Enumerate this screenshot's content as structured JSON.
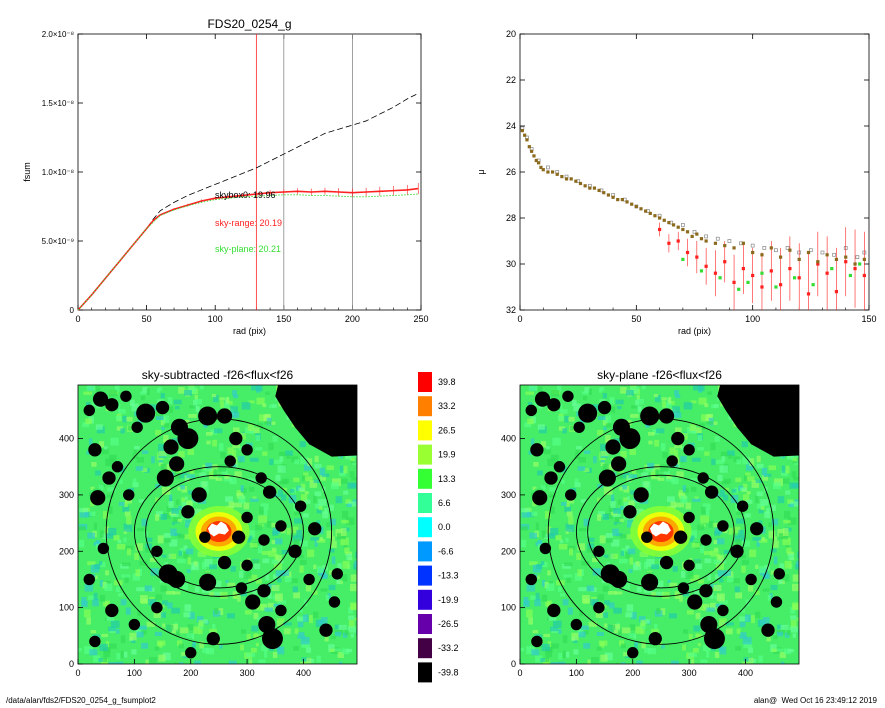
{
  "footer": {
    "path": "/data/alan/fds2/FDS20_0254_g_fsumplot2",
    "stamp": "alan@  Wed Oct 16 23:49:12 2019"
  },
  "colors": {
    "red": "#ff2020",
    "green": "#33dd33",
    "gray": "#888888",
    "olive": "#8b6a1e"
  },
  "chart_data": [
    {
      "id": "fsum",
      "type": "line",
      "title": "FDS20_0254_g",
      "xlabel": "rad (pix)",
      "ylabel": "fsum",
      "xlim": [
        0,
        250
      ],
      "ylim": [
        0,
        2e-08
      ],
      "x_ticks": [
        "0",
        "50",
        "100",
        "150",
        "200",
        "250"
      ],
      "y_ticks": [
        "0",
        "5.0×10⁻⁹",
        "1.0×10⁻⁸",
        "1.5×10⁻⁸",
        "2.0×10⁻⁸"
      ],
      "y_tick_values": [
        0,
        5e-09,
        1e-08,
        1.5e-08,
        2e-08
      ],
      "vertical_lines": [
        {
          "x": 130,
          "color": "#ff2020"
        },
        {
          "x": 150,
          "color": "#888888"
        },
        {
          "x": 200,
          "color": "#888888"
        }
      ],
      "annotations": [
        {
          "text": "skybox0: 19.96",
          "color": "#000000",
          "x": 78,
          "y": 8.1e-09
        },
        {
          "text": "sky-range: 20.19",
          "color": "#ff2020",
          "x": 78,
          "y": 6.1e-09
        },
        {
          "text": "sky-plane: 20.21",
          "color": "#33dd33",
          "x": 78,
          "y": 4.2e-09
        }
      ],
      "series": [
        {
          "style": "dashed",
          "color": "#000000",
          "x": [
            0,
            10,
            20,
            30,
            40,
            50,
            55,
            60,
            70,
            80,
            90,
            100,
            110,
            120,
            130,
            140,
            150,
            160,
            170,
            180,
            190,
            200,
            210,
            220,
            230,
            240,
            248
          ],
          "y": [
            0,
            1.1e-09,
            2.3e-09,
            3.5e-09,
            4.7e-09,
            5.9e-09,
            6.6e-09,
            7.2e-09,
            7.8e-09,
            8.3e-09,
            8.7e-09,
            9.1e-09,
            9.5e-09,
            9.9e-09,
            1.03e-08,
            1.08e-08,
            1.13e-08,
            1.18e-08,
            1.23e-08,
            1.28e-08,
            1.31e-08,
            1.34e-08,
            1.37e-08,
            1.42e-08,
            1.47e-08,
            1.53e-08,
            1.57e-08
          ]
        },
        {
          "style": "errorbar",
          "color": "#ff2020",
          "x": [
            0,
            10,
            20,
            30,
            40,
            50,
            55,
            60,
            70,
            80,
            90,
            100,
            110,
            120,
            130,
            140,
            150,
            160,
            170,
            180,
            190,
            200,
            210,
            220,
            230,
            240,
            248
          ],
          "y": [
            0,
            1.1e-09,
            2.3e-09,
            3.5e-09,
            4.7e-09,
            5.9e-09,
            6.5e-09,
            6.9e-09,
            7.3e-09,
            7.6e-09,
            7.9e-09,
            8.1e-09,
            8.2e-09,
            8.3e-09,
            8.4e-09,
            8.5e-09,
            8.55e-09,
            8.6e-09,
            8.55e-09,
            8.6e-09,
            8.55e-09,
            8.5e-09,
            8.55e-09,
            8.6e-09,
            8.65e-09,
            8.7e-09,
            8.8e-09
          ],
          "err": [
            0,
            0,
            0,
            0,
            0,
            5e-11,
            5e-11,
            5e-11,
            8e-11,
            1e-10,
            1.2e-10,
            1.2e-10,
            1.5e-10,
            1.5e-10,
            1.8e-10,
            2e-10,
            2e-10,
            2.2e-10,
            2.5e-10,
            2.5e-10,
            2.8e-10,
            3e-10,
            3e-10,
            3.2e-10,
            3.4e-10,
            3.6e-10,
            4e-10
          ]
        },
        {
          "style": "solid",
          "color": "#33dd33",
          "x": [
            0,
            10,
            20,
            30,
            40,
            50,
            60,
            70,
            80,
            90,
            100,
            110,
            120,
            130,
            140,
            150,
            160,
            170,
            180,
            190,
            200,
            210,
            220,
            230,
            240,
            248
          ],
          "y": [
            0,
            1.1e-09,
            2.3e-09,
            3.5e-09,
            4.7e-09,
            5.9e-09,
            6.85e-09,
            7.25e-09,
            7.55e-09,
            7.8e-09,
            8e-09,
            8.1e-09,
            8.2e-09,
            8.25e-09,
            8.3e-09,
            8.35e-09,
            8.35e-09,
            8.3e-09,
            8.3e-09,
            8.25e-09,
            8.2e-09,
            8.2e-09,
            8.25e-09,
            8.3e-09,
            8.35e-09,
            8.4e-09
          ]
        }
      ]
    },
    {
      "id": "profile",
      "type": "scatter",
      "title": "",
      "xlabel": "rad (pix)",
      "ylabel": "μ",
      "xlim": [
        0,
        150
      ],
      "ylim": [
        32,
        20
      ],
      "x_ticks": [
        "0",
        "50",
        "100",
        "150"
      ],
      "y_ticks": [
        "20",
        "22",
        "24",
        "26",
        "28",
        "30",
        "32"
      ],
      "series": [
        {
          "marker": "open-square",
          "color": "#888888",
          "x": [
            1,
            3,
            5,
            8,
            12,
            16,
            20,
            25,
            30,
            35,
            40,
            45,
            50,
            55,
            60,
            65,
            70,
            75,
            80,
            85,
            90,
            95,
            100,
            105,
            110,
            115,
            120,
            125,
            130,
            135,
            140,
            145,
            148
          ],
          "y": [
            24.1,
            24.5,
            25.0,
            25.5,
            25.8,
            26.0,
            26.2,
            26.4,
            26.6,
            26.8,
            27.0,
            27.2,
            27.5,
            27.7,
            27.9,
            28.2,
            28.3,
            28.6,
            28.8,
            28.9,
            29.0,
            29.1,
            29.2,
            29.3,
            29.4,
            29.3,
            29.5,
            29.4,
            29.5,
            29.6,
            29.3,
            29.7,
            29.5
          ]
        },
        {
          "marker": "filled-square",
          "color": "#ff2020",
          "x": [
            60,
            64,
            68,
            72,
            76,
            80,
            84,
            88,
            92,
            96,
            100,
            104,
            108,
            112,
            116,
            120,
            124,
            128,
            132,
            136,
            140,
            144,
            148
          ],
          "y": [
            28.5,
            29.1,
            29.0,
            29.5,
            29.7,
            30.1,
            30.4,
            29.9,
            30.8,
            30.2,
            30.5,
            31.0,
            30.3,
            30.9,
            30.2,
            30.6,
            31.3,
            30.0,
            30.4,
            31.2,
            29.9,
            30.2,
            30.5
          ],
          "err": [
            0.3,
            0.4,
            0.4,
            0.6,
            0.7,
            0.8,
            1.0,
            0.9,
            1.2,
            1.1,
            1.2,
            1.5,
            1.3,
            1.6,
            1.4,
            1.5,
            1.8,
            1.4,
            1.6,
            1.9,
            1.5,
            1.7,
            1.9
          ]
        },
        {
          "marker": "filled-square",
          "color": "#33dd33",
          "x": [
            70,
            78,
            86,
            94,
            98,
            104,
            110,
            118,
            126,
            134,
            142,
            146
          ],
          "y": [
            29.8,
            30.3,
            30.6,
            31.1,
            30.8,
            30.4,
            31.0,
            30.6,
            30.9,
            30.2,
            30.5,
            30.0
          ]
        },
        {
          "marker": "filled-square",
          "color": "#8b6a1e",
          "x": [
            1,
            2,
            3,
            4,
            5,
            6,
            7,
            8,
            9,
            10,
            12,
            14,
            16,
            18,
            20,
            22,
            24,
            26,
            28,
            30,
            32,
            34,
            36,
            38,
            40,
            42,
            44,
            46,
            48,
            50,
            52,
            54,
            56,
            58,
            60,
            62,
            64,
            66,
            68,
            70,
            72,
            74,
            76,
            78,
            80,
            84,
            88,
            92,
            96,
            100,
            104,
            108,
            112,
            116,
            120,
            124,
            128,
            132,
            136,
            140,
            144,
            148
          ],
          "y": [
            24.2,
            24.4,
            24.6,
            24.9,
            25.1,
            25.3,
            25.5,
            25.6,
            25.8,
            25.9,
            26.0,
            26.0,
            26.1,
            26.2,
            26.3,
            26.3,
            26.4,
            26.5,
            26.6,
            26.7,
            26.7,
            26.8,
            26.9,
            27.0,
            27.1,
            27.2,
            27.2,
            27.3,
            27.4,
            27.5,
            27.6,
            27.7,
            27.8,
            27.9,
            28.0,
            28.1,
            28.2,
            28.3,
            28.4,
            28.5,
            28.6,
            28.8,
            28.7,
            28.9,
            29.0,
            29.1,
            29.2,
            29.3,
            29.1,
            29.5,
            29.6,
            29.3,
            29.7,
            29.4,
            29.8,
            29.5,
            29.9,
            29.6,
            29.8,
            29.7,
            30.0,
            29.8
          ]
        }
      ]
    },
    {
      "id": "sky-subtracted",
      "type": "heatmap",
      "title": "sky-subtracted -f26<flux<f26",
      "xlim": [
        0,
        495
      ],
      "ylim": [
        0,
        495
      ],
      "x_ticks": [
        "0",
        "100",
        "200",
        "300",
        "400"
      ],
      "y_ticks": [
        "0",
        "100",
        "200",
        "300",
        "400"
      ],
      "center": [
        250,
        235
      ],
      "ellipses": [
        [
          130,
          100
        ],
        [
          150,
          115
        ],
        [
          200,
          200
        ]
      ]
    },
    {
      "id": "colorbar",
      "type": "table",
      "labels": [
        "39.8",
        "33.2",
        "26.5",
        "19.9",
        "13.3",
        "6.6",
        "0.0",
        "-6.6",
        "-13.3",
        "-19.9",
        "-26.5",
        "-33.2",
        "-39.8"
      ],
      "colors": [
        "#ff0000",
        "#ff8000",
        "#ffff00",
        "#99ff33",
        "#33ff33",
        "#33ff99",
        "#00ffff",
        "#0099ff",
        "#0033ff",
        "#3300dd",
        "#6600aa",
        "#440044",
        "#000000"
      ]
    },
    {
      "id": "sky-plane",
      "type": "heatmap",
      "title": "sky-plane -f26<flux<f26",
      "xlim": [
        0,
        495
      ],
      "ylim": [
        0,
        495
      ],
      "x_ticks": [
        "0",
        "100",
        "200",
        "300",
        "400"
      ],
      "y_ticks": [
        "0",
        "100",
        "200",
        "300",
        "400"
      ],
      "center": [
        250,
        235
      ],
      "ellipses": [
        [
          130,
          100
        ],
        [
          150,
          115
        ],
        [
          200,
          200
        ]
      ]
    }
  ]
}
